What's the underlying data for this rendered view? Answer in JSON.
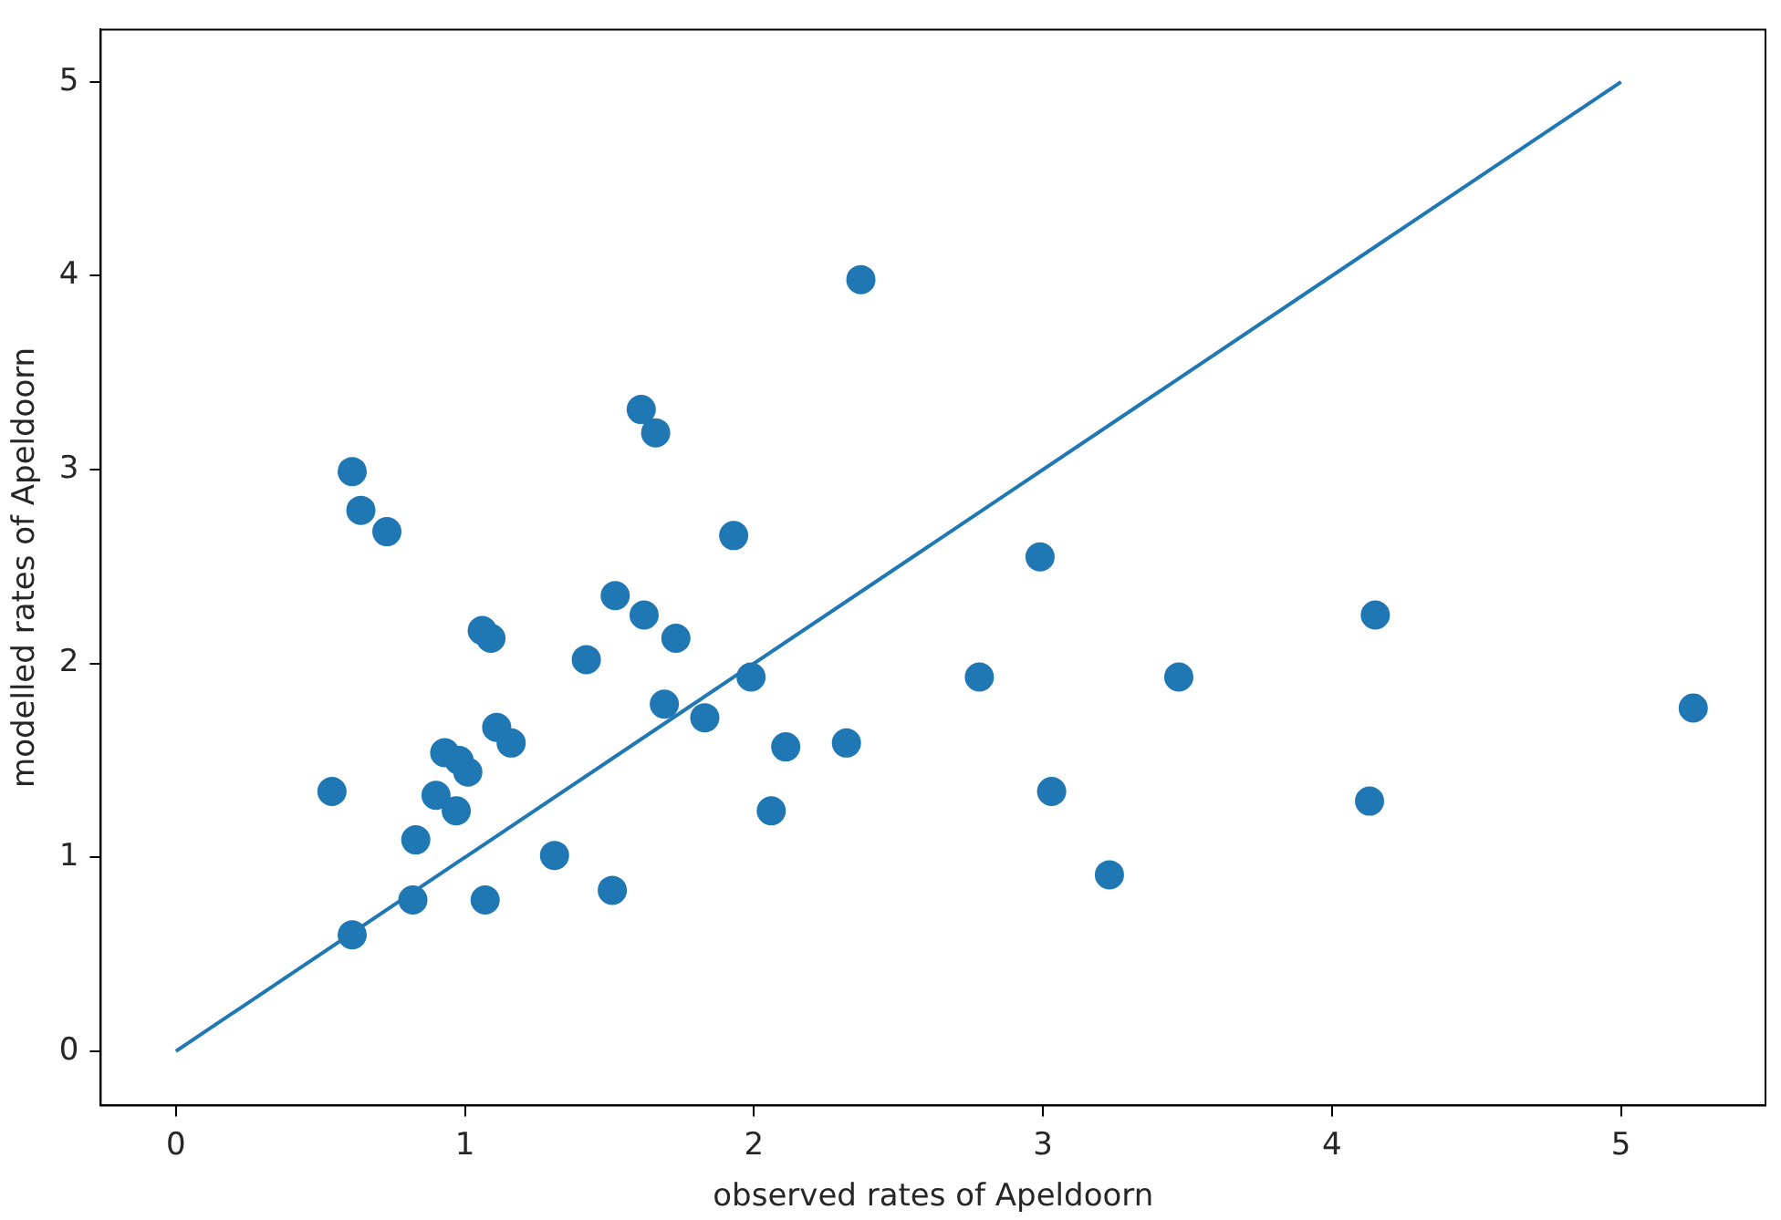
{
  "chart_data": {
    "type": "scatter",
    "xlabel": "observed rates of Apeldoorn",
    "ylabel": "modelled rates of Apeldoorn",
    "xlim": [
      -0.26,
      5.5
    ],
    "ylim": [
      -0.28,
      5.27
    ],
    "xticks": [
      0,
      1,
      2,
      3,
      4,
      5
    ],
    "yticks": [
      0,
      1,
      2,
      3,
      4,
      5
    ],
    "grid": false,
    "legend": false,
    "series": [
      {
        "type": "scatter",
        "marker": "circle",
        "color": "#1f77b4",
        "x": [
          2.37,
          1.61,
          1.66,
          0.61,
          0.64,
          0.73,
          1.93,
          2.99,
          1.52,
          1.06,
          1.09,
          1.62,
          1.73,
          4.15,
          1.42,
          1.99,
          2.78,
          3.47,
          1.69,
          5.25,
          1.83,
          1.11,
          1.16,
          2.32,
          2.11,
          0.93,
          0.98,
          1.01,
          0.54,
          0.9,
          3.03,
          0.97,
          2.06,
          4.13,
          0.83,
          1.31,
          3.23,
          0.82,
          1.07,
          1.51,
          0.61
        ],
        "values": [
          3.98,
          3.31,
          3.19,
          2.99,
          2.79,
          2.68,
          2.66,
          2.55,
          2.35,
          2.17,
          2.13,
          2.25,
          2.13,
          2.25,
          2.02,
          1.93,
          1.93,
          1.93,
          1.79,
          1.77,
          1.72,
          1.67,
          1.59,
          1.59,
          1.57,
          1.54,
          1.5,
          1.44,
          1.34,
          1.32,
          1.34,
          1.24,
          1.24,
          1.29,
          1.09,
          1.01,
          0.91,
          0.78,
          0.78,
          0.83,
          0.6
        ]
      },
      {
        "type": "line",
        "marker": "none",
        "color": "#1f77b4",
        "x": [
          0,
          5
        ],
        "values": [
          0,
          5
        ]
      }
    ]
  }
}
